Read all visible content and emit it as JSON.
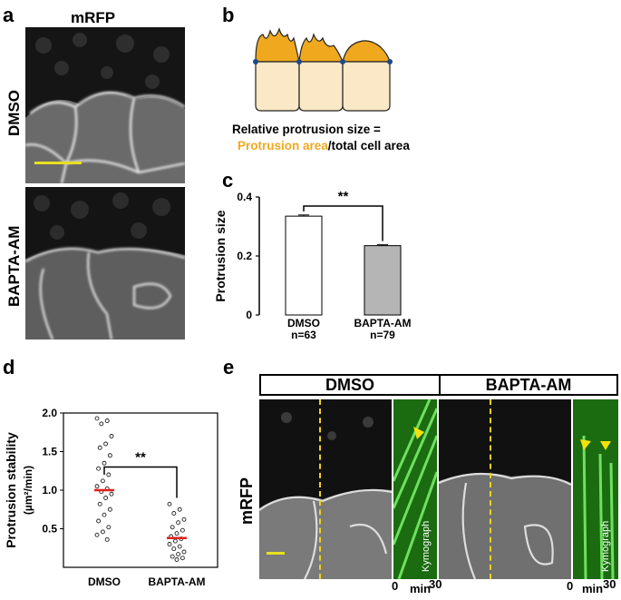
{
  "panels": {
    "a": {
      "label": "a",
      "title": "mRFP",
      "rows": [
        "DMSO",
        "BAPTA-AM"
      ]
    },
    "b": {
      "label": "b",
      "formula_line1": "Relative protrusion size =",
      "formula_highlight": "Protrusion area",
      "formula_rest": "/total cell area",
      "highlight_color": "#f0a81e"
    },
    "c": {
      "label": "c",
      "significance": "**"
    },
    "d": {
      "label": "d",
      "significance": "**"
    },
    "e": {
      "label": "e",
      "side_label": "mRFP",
      "conditions": [
        "DMSO",
        "BAPTA-AM"
      ],
      "kymo_label": "Kymograph",
      "time_axis": {
        "start": "0",
        "unit": "min",
        "end": "30"
      }
    }
  },
  "chart_data": [
    {
      "type": "bar",
      "panel": "c",
      "categories": [
        "DMSO\nn=63",
        "BAPTA-AM\nn=79"
      ],
      "category_names": [
        "DMSO",
        "BAPTA-AM"
      ],
      "category_n": [
        "n=63",
        "n=79"
      ],
      "values": [
        0.335,
        0.235
      ],
      "errors": [
        0.004,
        0.003
      ],
      "bar_colors": [
        "#ffffff",
        "#b5b5b5"
      ],
      "ylabel": "Protrusion size",
      "ylim": [
        0,
        0.4
      ],
      "yticks": [
        0,
        0.2,
        0.4
      ],
      "ytick_labels": [
        "0",
        "0.2",
        "0.4"
      ],
      "significance": "**"
    },
    {
      "type": "scatter",
      "panel": "d",
      "categories": [
        "DMSO",
        "BAPTA-AM"
      ],
      "ylabel": "Protrusion stability",
      "ylabel_unit": "(µm²/min)",
      "ylim": [
        0,
        2.0
      ],
      "yticks": [
        0.5,
        1.0,
        1.5,
        2.0
      ],
      "ytick_labels": [
        "0.5",
        "1.0",
        "1.5",
        "2.0"
      ],
      "medians": [
        1.0,
        0.38
      ],
      "median_color": "#e0201c",
      "points": [
        [
          1.93,
          1.9,
          1.86,
          1.7,
          1.6,
          1.55,
          1.45,
          1.35,
          1.28,
          1.2,
          1.12,
          1.05,
          1.02,
          0.98,
          0.95,
          0.9,
          0.82,
          0.75,
          0.68,
          0.6,
          0.52,
          0.46,
          0.42,
          0.36
        ],
        [
          0.82,
          0.75,
          0.7,
          0.62,
          0.58,
          0.52,
          0.48,
          0.44,
          0.4,
          0.37,
          0.34,
          0.3,
          0.27,
          0.24,
          0.2,
          0.17,
          0.14,
          0.12,
          0.1
        ]
      ],
      "significance": "**"
    }
  ]
}
